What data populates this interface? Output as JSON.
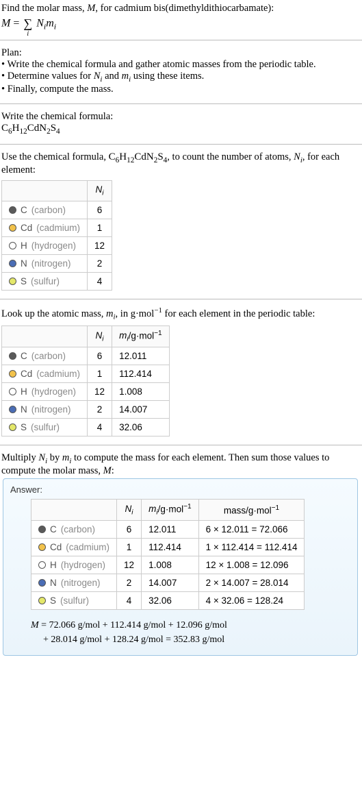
{
  "intro": {
    "prompt_line1": "Find the molar mass, ",
    "prompt_line1_end": ", for cadmium bis(dimethyldithiocarbamate):",
    "M": "M",
    "equals": " = ",
    "sigma": "∑",
    "sigma_sub": "i",
    "Nimi_N": "N",
    "Nimi_i1": "i",
    "Nimi_m": "m",
    "Nimi_i2": "i"
  },
  "plan": {
    "title": "Plan:",
    "b1": "• Write the chemical formula and gather atomic masses from the periodic table.",
    "b2_pre": "• Determine values for ",
    "b2_N": "N",
    "b2_i": "i",
    "b2_and": " and ",
    "b2_m": "m",
    "b2_i2": "i",
    "b2_post": " using these items.",
    "b3": "• Finally, compute the mass."
  },
  "step1": {
    "title": "Write the chemical formula:",
    "formula_parts": [
      "C",
      "6",
      "H",
      "12",
      "CdN",
      "2",
      "S",
      "4"
    ]
  },
  "step2": {
    "intro_pre": "Use the chemical formula, ",
    "intro_mid": ", to count the number of atoms, ",
    "intro_N": "N",
    "intro_i": "i",
    "intro_post": ", for each element:",
    "table": {
      "header": [
        "",
        "N",
        "i"
      ],
      "rows": [
        {
          "color": "#5a5a5a",
          "sym": "C",
          "name": "(carbon)",
          "n": "6"
        },
        {
          "color": "#f2c24b",
          "sym": "Cd",
          "name": "(cadmium)",
          "n": "1"
        },
        {
          "color": "#ffffff",
          "sym": "H",
          "name": "(hydrogen)",
          "n": "12"
        },
        {
          "color": "#4a6db5",
          "sym": "N",
          "name": "(nitrogen)",
          "n": "2"
        },
        {
          "color": "#e4e86a",
          "sym": "S",
          "name": "(sulfur)",
          "n": "4"
        }
      ]
    }
  },
  "step3": {
    "intro_pre": "Look up the atomic mass, ",
    "intro_m": "m",
    "intro_i": "i",
    "intro_mid": ", in g·mol",
    "intro_exp": "−1",
    "intro_post": " for each element in the periodic table:",
    "table": {
      "header_mi_m": "m",
      "header_mi_i": "i",
      "header_unit_pre": "/g·mol",
      "header_unit_exp": "−1",
      "rows": [
        {
          "color": "#5a5a5a",
          "sym": "C",
          "name": "(carbon)",
          "n": "6",
          "m": "12.011"
        },
        {
          "color": "#f2c24b",
          "sym": "Cd",
          "name": "(cadmium)",
          "n": "1",
          "m": "112.414"
        },
        {
          "color": "#ffffff",
          "sym": "H",
          "name": "(hydrogen)",
          "n": "12",
          "m": "1.008"
        },
        {
          "color": "#4a6db5",
          "sym": "N",
          "name": "(nitrogen)",
          "n": "2",
          "m": "14.007"
        },
        {
          "color": "#e4e86a",
          "sym": "S",
          "name": "(sulfur)",
          "n": "4",
          "m": "32.06"
        }
      ]
    }
  },
  "step4": {
    "intro_pre": "Multiply ",
    "N": "N",
    "i1": "i",
    "by": " by ",
    "m": "m",
    "i2": "i",
    "mid": " to compute the mass for each element. Then sum those values to compute the molar mass, ",
    "M": "M",
    "post": ":"
  },
  "answer": {
    "label": "Answer:",
    "table": {
      "header_mass": "mass/g·mol",
      "header_mass_exp": "−1",
      "rows": [
        {
          "color": "#5a5a5a",
          "sym": "C",
          "name": "(carbon)",
          "n": "6",
          "m": "12.011",
          "calc": "6 × 12.011 = 72.066"
        },
        {
          "color": "#f2c24b",
          "sym": "Cd",
          "name": "(cadmium)",
          "n": "1",
          "m": "112.414",
          "calc": "1 × 112.414 = 112.414"
        },
        {
          "color": "#ffffff",
          "sym": "H",
          "name": "(hydrogen)",
          "n": "12",
          "m": "1.008",
          "calc": "12 × 1.008 = 12.096"
        },
        {
          "color": "#4a6db5",
          "sym": "N",
          "name": "(nitrogen)",
          "n": "2",
          "m": "14.007",
          "calc": "2 × 14.007 = 28.014"
        },
        {
          "color": "#e4e86a",
          "sym": "S",
          "name": "(sulfur)",
          "n": "4",
          "m": "32.06",
          "calc": "4 × 32.06 = 128.24"
        }
      ]
    },
    "final_line1": "M = 72.066 g/mol + 112.414 g/mol + 12.096 g/mol",
    "final_line2": "+ 28.014 g/mol + 128.24 g/mol = 352.83 g/mol"
  }
}
